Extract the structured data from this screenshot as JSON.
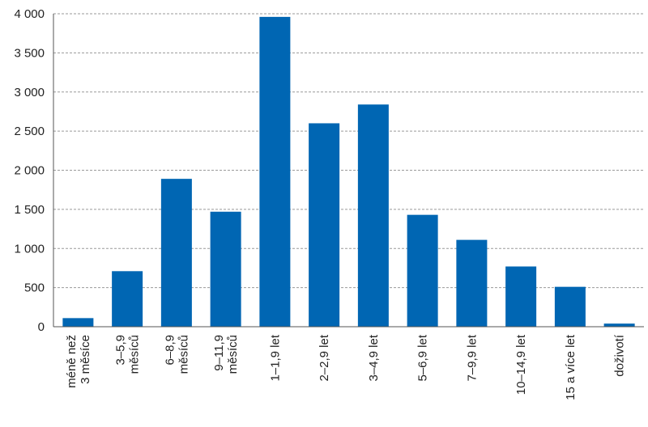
{
  "chart_data": {
    "type": "bar",
    "title": "",
    "xlabel": "",
    "ylabel": "",
    "ylim": [
      0,
      4000
    ],
    "y_ticks": [
      0,
      500,
      1000,
      1500,
      2000,
      2500,
      3000,
      3500,
      4000
    ],
    "y_tick_labels": [
      "0",
      "500",
      "1 000",
      "1 500",
      "2 000",
      "2 500",
      "3 000",
      "3 500",
      "4 000"
    ],
    "grid": "horizontal-dashed",
    "bar_color": "#0066b3",
    "categories": [
      [
        "méně než",
        "3 měsíce"
      ],
      [
        "3–5,9",
        "měsíců"
      ],
      [
        "6–8,9",
        "měsíců"
      ],
      [
        "9–11,9",
        "měsíců"
      ],
      [
        "1–1,9 let"
      ],
      [
        "2–2,9 let"
      ],
      [
        "3–4,9 let"
      ],
      [
        "5–6,9 let"
      ],
      [
        "7–9,9 let"
      ],
      [
        "10–14,9 let"
      ],
      [
        "15 a více let"
      ],
      [
        "doživotí"
      ]
    ],
    "values": [
      110,
      710,
      1890,
      1470,
      3960,
      2600,
      2840,
      1430,
      1110,
      770,
      510,
      40
    ]
  }
}
